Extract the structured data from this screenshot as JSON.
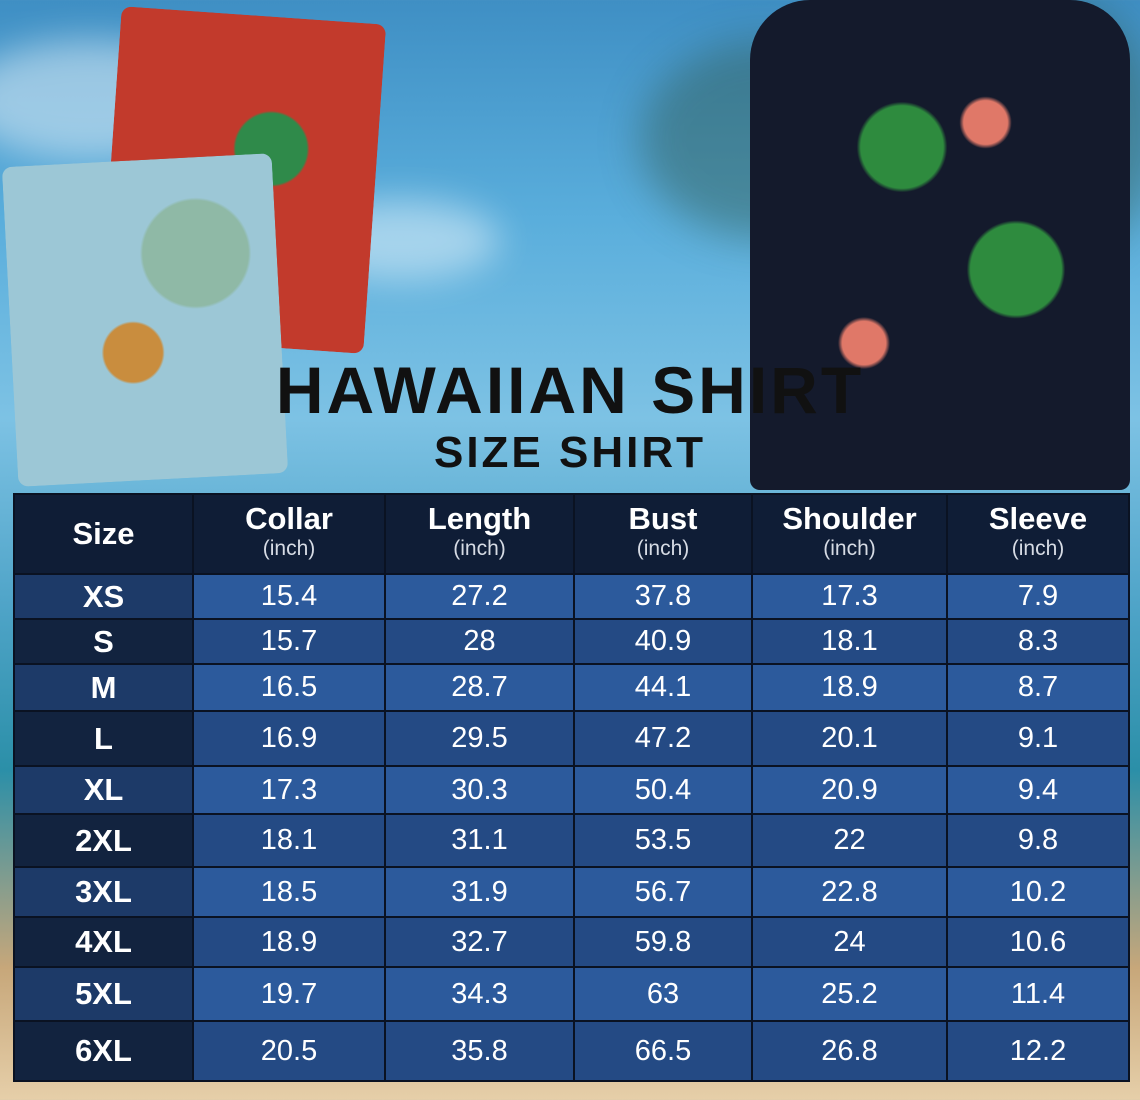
{
  "title": "HAWAIIAN SHIRT",
  "subtitle": "SIZE SHIRT",
  "table": {
    "headers": [
      {
        "label": "Size",
        "unit": ""
      },
      {
        "label": "Collar",
        "unit": "(inch)"
      },
      {
        "label": "Length",
        "unit": "(inch)"
      },
      {
        "label": "Bust",
        "unit": "(inch)"
      },
      {
        "label": "Shoulder",
        "unit": "(inch)"
      },
      {
        "label": "Sleeve",
        "unit": "(inch)"
      }
    ],
    "rows": [
      [
        "XS",
        "15.4",
        "27.2",
        "37.8",
        "17.3",
        "7.9"
      ],
      [
        "S",
        "15.7",
        "28",
        "40.9",
        "18.1",
        "8.3"
      ],
      [
        "M",
        "16.5",
        "28.7",
        "44.1",
        "18.9",
        "8.7"
      ],
      [
        "L",
        "16.9",
        "29.5",
        "47.2",
        "20.1",
        "9.1"
      ],
      [
        "XL",
        "17.3",
        "30.3",
        "50.4",
        "20.9",
        "9.4"
      ],
      [
        "2XL",
        "18.1",
        "31.1",
        "53.5",
        "22",
        "9.8"
      ],
      [
        "3XL",
        "18.5",
        "31.9",
        "56.7",
        "22.8",
        "10.2"
      ],
      [
        "4XL",
        "18.9",
        "32.7",
        "59.8",
        "24",
        "10.6"
      ],
      [
        "5XL",
        "19.7",
        "34.3",
        "63",
        "25.2",
        "11.4"
      ],
      [
        "6XL",
        "20.5",
        "35.8",
        "66.5",
        "26.8",
        "12.2"
      ]
    ]
  },
  "colors": {
    "header": "#0f1d36",
    "row_light": "#2c5a9c",
    "row_dark": "#244a84"
  }
}
